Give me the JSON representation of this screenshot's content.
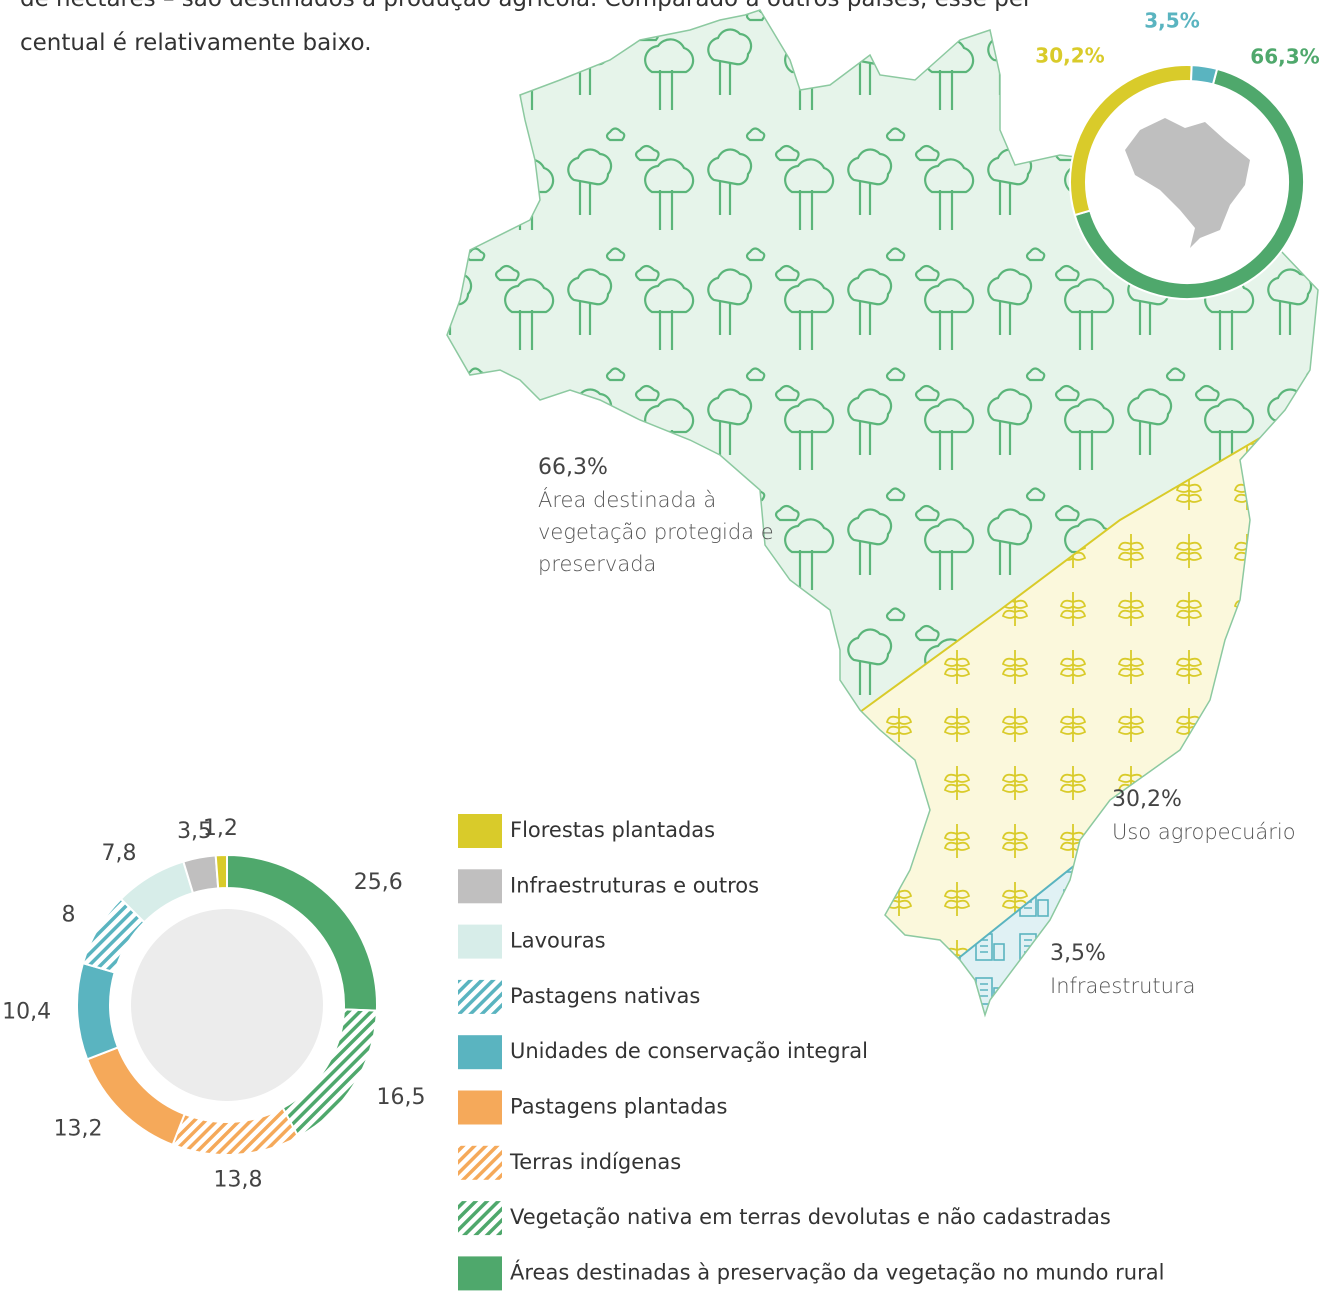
{
  "intro": [
    "de hectares – são destinados à produção agrícola. Comparado a outros países, esse per",
    "centual é relativamente baixo."
  ],
  "chart_data": [
    {
      "type": "donut",
      "categories": [
        "Área destinada à vegetação protegida e preservada",
        "Uso agropecuário",
        "Infraestrutura"
      ],
      "values": [
        66.3,
        30.2,
        3.5
      ],
      "value_labels": [
        "66,3%",
        "30,2%",
        "3,5%"
      ],
      "colors": [
        "#4fa86c",
        "#d9cb2a",
        "#5ab4c0"
      ]
    },
    {
      "type": "donut",
      "categories": [
        "Florestas plantadas",
        "Infraestruturas e outros",
        "Lavouras",
        "Pastagens nativas",
        "Unidades de conservação integral",
        "Pastagens plantadas",
        "Terras indígenas",
        "Vegetação nativa em terras devolutas e não cadastradas",
        "Áreas destinadas à preservação da vegetação no mundo rural"
      ],
      "values": [
        1.2,
        3.5,
        7.8,
        8,
        10.4,
        13.2,
        13.8,
        16.5,
        25.6
      ],
      "value_labels": [
        "1,2",
        "3,5",
        "7,8",
        "8",
        "10,4",
        "13,2",
        "13,8",
        "16,5",
        "25,6"
      ],
      "colors": [
        "#d9cb2a",
        "#c0bfbf",
        "#d7ede9",
        "#5ab4c0",
        "#5ab4c0",
        "#f5a95a",
        "#f5a95a",
        "#4fa86c",
        "#4fa86c"
      ],
      "hatched": [
        false,
        false,
        false,
        true,
        false,
        false,
        true,
        true,
        false
      ]
    }
  ]
}
